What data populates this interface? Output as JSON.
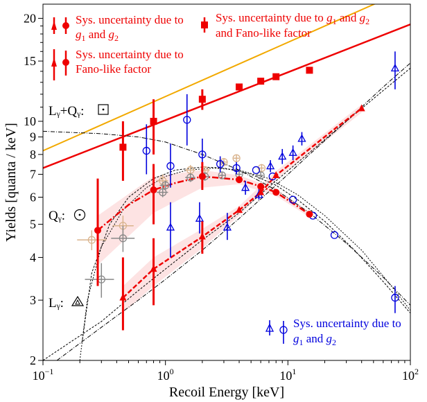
{
  "chart_data": {
    "type": "scatter",
    "xlabel": "Recoil Energy [keV]",
    "ylabel": "Yields [quanta / keV]",
    "x_scale": "log",
    "y_scale": "log",
    "xlim": [
      0.1,
      100
    ],
    "ylim": [
      2,
      22
    ],
    "x_ticks": [
      {
        "v": 0.1,
        "base": "10",
        "exp": "−1"
      },
      {
        "v": 1,
        "base": "10",
        "exp": "0"
      },
      {
        "v": 10,
        "base": "10",
        "exp": "1"
      },
      {
        "v": 100,
        "base": "10",
        "exp": "2"
      }
    ],
    "y_ticks": [
      {
        "v": 2,
        "label": "2"
      },
      {
        "v": 3,
        "label": "3"
      },
      {
        "v": 4,
        "label": "4"
      },
      {
        "v": 5,
        "label": "5"
      },
      {
        "v": 6,
        "label": "6"
      },
      {
        "v": 7,
        "label": "7"
      },
      {
        "v": 8,
        "label": "8"
      },
      {
        "v": 9,
        "label": "9"
      },
      {
        "v": 10,
        "label": "10"
      },
      {
        "v": 15,
        "label": "15"
      },
      {
        "v": 20,
        "label": "20"
      }
    ],
    "colors": {
      "red": "#ee0000",
      "blue": "#0000dd",
      "orange": "#f2a900",
      "band": "#fde3e3",
      "gray": "#888888",
      "tan": "#d9b38c"
    },
    "annotations": {
      "ly_qy": "Lᵧ+Qᵧ:",
      "qy": "Qᵧ:",
      "ly": "Lᵧ:"
    },
    "legend": {
      "red1_a": "Sys. uncertainty due to",
      "red1_b": "g",
      "red1_b_sub": "1",
      "red1_c": " and ",
      "red1_d": "g",
      "red1_d_sub": "2",
      "red2_a": "Sys. uncertainty due to ",
      "red2_b": "g",
      "red2_b_sub": "1",
      "red2_c": " and ",
      "red2_d": "g",
      "red2_d_sub": "2",
      "red2_e": "and Fano-like factor",
      "red3_a": "Sys. uncertainty due to",
      "red3_b": "Fano-like factor",
      "blue_a": "Sys. uncertainty due to",
      "blue_b": "g",
      "blue_b_sub": "1",
      "blue_c": " and ",
      "blue_d": "g",
      "blue_d_sub": "2"
    },
    "lines": {
      "orange": [
        [
          0.1,
          8.2
        ],
        [
          100,
          24.5
        ]
      ],
      "red": [
        [
          0.1,
          7.3
        ],
        [
          100,
          19.2
        ]
      ]
    },
    "squares_ly_qy": [
      {
        "x": 0.45,
        "y": 8.4,
        "lo": 6.7,
        "hi": 10.0
      },
      {
        "x": 0.8,
        "y": 10.0,
        "lo": 8.0,
        "hi": 11.6
      },
      {
        "x": 2.0,
        "y": 11.6,
        "lo": 10.8,
        "hi": 12.4
      },
      {
        "x": 4.0,
        "y": 12.6
      },
      {
        "x": 6.0,
        "y": 13.1
      },
      {
        "x": 8.0,
        "y": 13.5
      },
      {
        "x": 15.0,
        "y": 14.1
      }
    ],
    "red_qy": [
      {
        "x": 0.28,
        "y": 4.8,
        "lo": 3.3,
        "hi": 6.8
      },
      {
        "x": 0.8,
        "y": 6.3,
        "lo": 5.0,
        "hi": 7.5
      },
      {
        "x": 2.0,
        "y": 6.9,
        "lo": 6.3,
        "hi": 7.6
      },
      {
        "x": 4.0,
        "y": 6.75
      },
      {
        "x": 6.0,
        "y": 6.45
      },
      {
        "x": 8.0,
        "y": 6.2
      },
      {
        "x": 15.0,
        "y": 5.35
      }
    ],
    "red_ly": [
      {
        "x": 0.45,
        "y": 3.05,
        "lo": 2.45,
        "hi": 4.0
      },
      {
        "x": 0.8,
        "y": 3.7,
        "lo": 2.9,
        "hi": 4.55
      },
      {
        "x": 2.0,
        "y": 4.6,
        "lo": 4.1,
        "hi": 5.1
      },
      {
        "x": 4.0,
        "y": 5.5
      },
      {
        "x": 6.0,
        "y": 6.2
      },
      {
        "x": 8.0,
        "y": 6.95
      },
      {
        "x": 40.0,
        "y": 10.9
      }
    ],
    "band_qy": [
      {
        "x": 0.28,
        "lo": 3.8,
        "hi": 5.3
      },
      {
        "x": 0.8,
        "lo": 5.4,
        "hi": 6.9
      },
      {
        "x": 2.0,
        "lo": 6.4,
        "hi": 7.2
      },
      {
        "x": 4.0,
        "lo": 6.55,
        "hi": 6.95
      },
      {
        "x": 8.0,
        "lo": 6.05,
        "hi": 6.35
      },
      {
        "x": 15.0,
        "lo": 5.25,
        "hi": 5.45
      }
    ],
    "band_ly": [
      {
        "x": 0.45,
        "lo": 2.75,
        "hi": 3.3
      },
      {
        "x": 0.8,
        "lo": 3.3,
        "hi": 4.0
      },
      {
        "x": 2.0,
        "lo": 4.25,
        "hi": 4.85
      },
      {
        "x": 4.0,
        "lo": 5.3,
        "hi": 5.65
      },
      {
        "x": 8.0,
        "lo": 6.75,
        "hi": 7.15
      },
      {
        "x": 40.0,
        "lo": 10.6,
        "hi": 11.2
      }
    ],
    "blue_qy": [
      {
        "x": 0.7,
        "y": 8.2,
        "lo": 7.0,
        "hi": 9.8
      },
      {
        "x": 1.1,
        "y": 7.4,
        "lo": 6.4,
        "hi": 8.6
      },
      {
        "x": 1.5,
        "y": 10.1,
        "lo": 8.5,
        "hi": 12.0
      },
      {
        "x": 2.0,
        "y": 8.0,
        "lo": 7.2,
        "hi": 8.9
      },
      {
        "x": 2.8,
        "y": 7.5,
        "lo": 7.1,
        "hi": 7.9
      },
      {
        "x": 3.8,
        "y": 7.3,
        "lo": 7.0,
        "hi": 7.6
      },
      {
        "x": 5.5,
        "y": 7.2
      },
      {
        "x": 7.5,
        "y": 6.9
      },
      {
        "x": 11.0,
        "y": 5.9
      },
      {
        "x": 16.0,
        "y": 5.3
      },
      {
        "x": 24.0,
        "y": 4.65
      },
      {
        "x": 75.0,
        "y": 3.05,
        "lo": 2.75,
        "hi": 3.3
      }
    ],
    "blue_ly": [
      {
        "x": 1.1,
        "y": 4.9,
        "lo": 4.0,
        "hi": 5.8
      },
      {
        "x": 1.9,
        "y": 5.2,
        "lo": 4.7,
        "hi": 5.8
      },
      {
        "x": 3.2,
        "y": 4.9,
        "lo": 4.5,
        "hi": 5.4
      },
      {
        "x": 4.5,
        "y": 6.4,
        "lo": 6.1,
        "hi": 6.7
      },
      {
        "x": 5.8,
        "y": 6.1,
        "lo": 5.9,
        "hi": 6.4
      },
      {
        "x": 7.2,
        "y": 7.4,
        "lo": 7.1,
        "hi": 7.7
      },
      {
        "x": 9.0,
        "y": 7.9,
        "lo": 7.5,
        "hi": 8.3
      },
      {
        "x": 11.0,
        "y": 8.1,
        "lo": 7.7,
        "hi": 8.5
      },
      {
        "x": 13.0,
        "y": 8.9,
        "lo": 8.5,
        "hi": 9.3
      },
      {
        "x": 75.0,
        "y": 14.3,
        "lo": 12.4,
        "hi": 16.0
      }
    ],
    "tan_points": [
      {
        "x": 0.25,
        "y": 4.5,
        "dx": [
          0.19,
          0.33
        ],
        "dy": [
          4.2,
          4.8
        ]
      },
      {
        "x": 0.45,
        "y": 4.95,
        "dx": [
          0.37,
          0.55
        ],
        "dy": [
          4.6,
          5.3
        ]
      },
      {
        "x": 0.95,
        "y": 6.7,
        "dx": [
          0.85,
          1.05
        ],
        "dy": [
          6.4,
          7.0
        ]
      },
      {
        "x": 1.6,
        "y": 7.2,
        "dx": [
          1.45,
          1.75
        ],
        "dy": [
          7.0,
          7.45
        ]
      },
      {
        "x": 2.1,
        "y": 7.2,
        "dx": [
          1.95,
          2.3
        ],
        "dy": [
          7.0,
          7.4
        ]
      },
      {
        "x": 3.0,
        "y": 7.6,
        "dx": [
          2.8,
          3.2
        ],
        "dy": [
          7.4,
          7.8
        ]
      },
      {
        "x": 3.8,
        "y": 7.8,
        "dx": [
          3.6,
          4.0
        ],
        "dy": [
          7.6,
          8.0
        ]
      },
      {
        "x": 6.1,
        "y": 7.3,
        "dx": [
          5.8,
          6.4
        ],
        "dy": [
          7.1,
          7.5
        ]
      }
    ],
    "gray_points": [
      {
        "x": 0.3,
        "y": 3.45,
        "dx": [
          0.22,
          0.38
        ],
        "dy": [
          3.05,
          3.85
        ]
      },
      {
        "x": 0.45,
        "y": 4.55,
        "dx": [
          0.36,
          0.56
        ],
        "dy": [
          4.15,
          4.95
        ]
      },
      {
        "x": 0.95,
        "y": 6.2,
        "dx": [
          0.85,
          1.05
        ],
        "dy": [
          6.0,
          6.4
        ]
      },
      {
        "x": 1.0,
        "y": 6.5,
        "dx": [
          0.9,
          1.1
        ],
        "dy": [
          6.3,
          6.7
        ]
      },
      {
        "x": 1.6,
        "y": 6.85,
        "dx": [
          1.45,
          1.75
        ],
        "dy": [
          6.65,
          7.05
        ]
      },
      {
        "x": 2.1,
        "y": 6.9,
        "dx": [
          1.95,
          2.3
        ],
        "dy": [
          6.7,
          7.1
        ]
      },
      {
        "x": 2.9,
        "y": 6.95,
        "dx": [
          2.75,
          3.1
        ],
        "dy": [
          6.8,
          7.1
        ]
      },
      {
        "x": 4.0,
        "y": 7.0,
        "dx": [
          3.8,
          4.2
        ],
        "dy": [
          6.85,
          7.15
        ]
      },
      {
        "x": 6.0,
        "y": 6.95,
        "dx": [
          5.7,
          6.3
        ],
        "dy": [
          6.8,
          7.1
        ]
      }
    ],
    "curves": {
      "ly_qy_dashdot": [
        [
          0.1,
          9.35
        ],
        [
          0.3,
          9.2
        ],
        [
          0.6,
          9.0
        ],
        [
          1.0,
          8.7
        ],
        [
          2.0,
          8.0
        ],
        [
          4.0,
          7.2
        ],
        [
          8.0,
          6.3
        ],
        [
          15.0,
          5.4
        ],
        [
          30.0,
          4.4
        ],
        [
          60.0,
          3.5
        ],
        [
          100.0,
          2.9
        ]
      ],
      "qy_dashed": [
        [
          0.21,
          2.3
        ],
        [
          0.25,
          3.6
        ],
        [
          0.35,
          5.0
        ],
        [
          0.5,
          6.0
        ],
        [
          0.8,
          6.8
        ],
        [
          1.2,
          7.2
        ],
        [
          2.0,
          7.35
        ],
        [
          3.0,
          7.3
        ],
        [
          5.0,
          7.0
        ],
        [
          8.0,
          6.5
        ],
        [
          12.0,
          5.9
        ],
        [
          20.0,
          5.1
        ],
        [
          35.0,
          4.2
        ],
        [
          60.0,
          3.4
        ],
        [
          100.0,
          2.75
        ]
      ],
      "qy_dashed_b": [
        [
          0.2,
          2.0
        ],
        [
          0.23,
          3.0
        ],
        [
          0.3,
          4.3
        ],
        [
          0.45,
          5.5
        ],
        [
          0.7,
          6.4
        ],
        [
          1.0,
          6.9
        ],
        [
          1.5,
          7.2
        ],
        [
          2.5,
          7.3
        ],
        [
          4.0,
          7.2
        ],
        [
          7.0,
          6.8
        ],
        [
          12.0,
          6.1
        ],
        [
          20.0,
          5.3
        ],
        [
          40.0,
          4.2
        ],
        [
          70.0,
          3.3
        ],
        [
          100.0,
          2.8
        ]
      ],
      "ly_dashed": [
        [
          0.1,
          2.0
        ],
        [
          0.3,
          2.6
        ],
        [
          0.6,
          3.2
        ],
        [
          1.0,
          3.7
        ],
        [
          2.0,
          4.5
        ],
        [
          4.0,
          5.4
        ],
        [
          8.0,
          6.7
        ],
        [
          15.0,
          8.1
        ],
        [
          30.0,
          10.0
        ],
        [
          60.0,
          12.3
        ],
        [
          100.0,
          14.3
        ]
      ],
      "ly_dashdot": [
        [
          0.13,
          2.0
        ],
        [
          0.3,
          2.5
        ],
        [
          0.6,
          3.0
        ],
        [
          1.0,
          3.45
        ],
        [
          2.0,
          4.2
        ],
        [
          4.0,
          5.2
        ],
        [
          8.0,
          6.5
        ],
        [
          15.0,
          8.0
        ],
        [
          30.0,
          10.0
        ],
        [
          60.0,
          12.6
        ],
        [
          100.0,
          14.8
        ]
      ],
      "red_qy_dashdot": [
        [
          0.28,
          4.8
        ],
        [
          0.5,
          5.7
        ],
        [
          0.8,
          6.3
        ],
        [
          1.2,
          6.6
        ],
        [
          2.0,
          6.9
        ],
        [
          4.0,
          6.75
        ],
        [
          6.0,
          6.45
        ],
        [
          8.0,
          6.2
        ],
        [
          15.0,
          5.35
        ]
      ],
      "red_ly_dashed": [
        [
          0.45,
          3.05
        ],
        [
          0.8,
          3.7
        ],
        [
          2.0,
          4.6
        ],
        [
          4.0,
          5.5
        ],
        [
          6.0,
          6.2
        ],
        [
          8.0,
          6.95
        ],
        [
          15.0,
          8.3
        ],
        [
          25.0,
          9.6
        ],
        [
          40.0,
          10.9
        ]
      ]
    }
  }
}
